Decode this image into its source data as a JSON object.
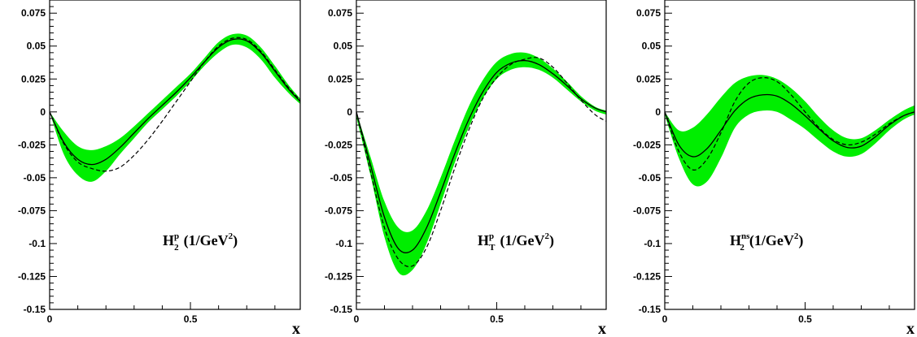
{
  "chart_data": [
    {
      "type": "line",
      "label": {
        "main": "H",
        "sup": "p",
        "sub": "2",
        "unit_pre": "(1/GeV",
        "unit_sup": "2",
        "unit_post": ")"
      },
      "xlabel": "x",
      "xlim": [
        0,
        0.89
      ],
      "ylim": [
        -0.15,
        0.085
      ],
      "x_ticks": [
        {
          "v": 0,
          "label": "0"
        },
        {
          "v": 0.5,
          "label": "0.5"
        }
      ],
      "y_ticks": [
        {
          "v": 0.075,
          "label": "0.075"
        },
        {
          "v": 0.05,
          "label": "0.05"
        },
        {
          "v": 0.025,
          "label": "0.025"
        },
        {
          "v": 0,
          "label": "0"
        },
        {
          "v": -0.025,
          "label": "-0.025"
        },
        {
          "v": -0.05,
          "label": "-0.05"
        },
        {
          "v": -0.075,
          "label": "-0.075"
        },
        {
          "v": -0.1,
          "label": "-0.1"
        },
        {
          "v": -0.125,
          "label": "-0.125"
        },
        {
          "v": -0.15,
          "label": "-0.15"
        }
      ],
      "band_color": "#00ee00",
      "x": [
        0,
        0.05,
        0.1,
        0.15,
        0.2,
        0.25,
        0.3,
        0.35,
        0.4,
        0.45,
        0.5,
        0.55,
        0.6,
        0.65,
        0.7,
        0.75,
        0.8,
        0.85,
        0.89
      ],
      "central": [
        0,
        -0.023,
        -0.036,
        -0.04,
        -0.036,
        -0.027,
        -0.016,
        -0.005,
        0.005,
        0.015,
        0.026,
        0.038,
        0.049,
        0.055,
        0.054,
        0.045,
        0.031,
        0.017,
        0.008
      ],
      "band_lower": [
        0,
        -0.032,
        -0.048,
        -0.053,
        -0.045,
        -0.032,
        -0.02,
        -0.008,
        0.002,
        0.012,
        0.023,
        0.035,
        0.045,
        0.051,
        0.049,
        0.04,
        0.026,
        0.014,
        0.006
      ],
      "band_upper": [
        0,
        -0.015,
        -0.026,
        -0.029,
        -0.026,
        -0.02,
        -0.011,
        -0.001,
        0.009,
        0.019,
        0.029,
        0.041,
        0.053,
        0.059,
        0.058,
        0.049,
        0.035,
        0.02,
        0.01
      ],
      "dashed": [
        0,
        -0.024,
        -0.038,
        -0.043,
        -0.045,
        -0.042,
        -0.033,
        -0.021,
        -0.007,
        0.008,
        0.023,
        0.038,
        0.05,
        0.056,
        0.055,
        0.046,
        0.032,
        0.018,
        0.009
      ]
    },
    {
      "type": "line",
      "label": {
        "main": "H",
        "sup": "p",
        "sub": "T",
        "unit_pre": "(1/GeV",
        "unit_sup": "2",
        "unit_post": ")"
      },
      "xlabel": "x",
      "xlim": [
        0,
        0.89
      ],
      "ylim": [
        -0.15,
        0.085
      ],
      "x_ticks": [
        {
          "v": 0,
          "label": "0"
        },
        {
          "v": 0.5,
          "label": "0.5"
        }
      ],
      "y_ticks": [
        {
          "v": 0.075,
          "label": "0.075"
        },
        {
          "v": 0.05,
          "label": "0.05"
        },
        {
          "v": 0.025,
          "label": "0.025"
        },
        {
          "v": 0,
          "label": "0"
        },
        {
          "v": -0.025,
          "label": "-0.025"
        },
        {
          "v": -0.05,
          "label": "-0.05"
        },
        {
          "v": -0.075,
          "label": "-0.075"
        },
        {
          "v": -0.1,
          "label": "-0.1"
        },
        {
          "v": -0.125,
          "label": "-0.125"
        },
        {
          "v": -0.15,
          "label": "-0.15"
        }
      ],
      "band_color": "#00ee00",
      "x": [
        0,
        0.05,
        0.1,
        0.15,
        0.2,
        0.25,
        0.3,
        0.35,
        0.4,
        0.45,
        0.5,
        0.55,
        0.6,
        0.65,
        0.7,
        0.75,
        0.8,
        0.85,
        0.89
      ],
      "central": [
        0,
        -0.04,
        -0.08,
        -0.104,
        -0.105,
        -0.088,
        -0.061,
        -0.032,
        -0.006,
        0.015,
        0.03,
        0.037,
        0.039,
        0.036,
        0.029,
        0.02,
        0.01,
        0.003,
        0
      ],
      "band_lower": [
        -0.004,
        -0.048,
        -0.095,
        -0.122,
        -0.12,
        -0.1,
        -0.07,
        -0.039,
        -0.012,
        0.01,
        0.025,
        0.032,
        0.034,
        0.032,
        0.026,
        0.017,
        0.008,
        0.001,
        -0.002
      ],
      "band_upper": [
        0,
        -0.034,
        -0.068,
        -0.088,
        -0.09,
        -0.075,
        -0.05,
        -0.022,
        0.004,
        0.024,
        0.038,
        0.044,
        0.045,
        0.041,
        0.033,
        0.023,
        0.012,
        0.004,
        0.001
      ],
      "dashed": [
        0,
        -0.045,
        -0.088,
        -0.112,
        -0.117,
        -0.103,
        -0.075,
        -0.043,
        -0.014,
        0.01,
        0.026,
        0.036,
        0.04,
        0.041,
        0.034,
        0.022,
        0.009,
        -0.002,
        -0.007
      ]
    },
    {
      "type": "line",
      "label": {
        "main": "H",
        "sup": "ns",
        "sub": "2",
        "unit_pre": "(1/GeV",
        "unit_sup": "2",
        "unit_post": ")"
      },
      "xlabel": "x",
      "xlim": [
        0,
        0.89
      ],
      "ylim": [
        -0.15,
        0.085
      ],
      "x_ticks": [
        {
          "v": 0,
          "label": "0"
        },
        {
          "v": 0.5,
          "label": "0.5"
        }
      ],
      "y_ticks": [
        {
          "v": 0.075,
          "label": "0.075"
        },
        {
          "v": 0.05,
          "label": "0.05"
        },
        {
          "v": 0.025,
          "label": "0.025"
        },
        {
          "v": 0,
          "label": "0"
        },
        {
          "v": -0.025,
          "label": "-0.025"
        },
        {
          "v": -0.05,
          "label": "-0.05"
        },
        {
          "v": -0.075,
          "label": "-0.075"
        },
        {
          "v": -0.1,
          "label": "-0.1"
        },
        {
          "v": -0.125,
          "label": "-0.125"
        },
        {
          "v": -0.15,
          "label": "-0.15"
        }
      ],
      "band_color": "#00ee00",
      "x": [
        0,
        0.05,
        0.1,
        0.15,
        0.2,
        0.25,
        0.3,
        0.35,
        0.4,
        0.45,
        0.5,
        0.55,
        0.6,
        0.65,
        0.7,
        0.75,
        0.8,
        0.85,
        0.89
      ],
      "central": [
        0,
        -0.025,
        -0.034,
        -0.028,
        -0.014,
        0.001,
        0.01,
        0.013,
        0.012,
        0.006,
        -0.003,
        -0.013,
        -0.022,
        -0.027,
        -0.026,
        -0.019,
        -0.01,
        -0.003,
        0
      ],
      "band_lower": [
        -0.002,
        -0.035,
        -0.055,
        -0.053,
        -0.035,
        -0.012,
        -0.002,
        0.001,
        0.0,
        -0.006,
        -0.013,
        -0.022,
        -0.03,
        -0.034,
        -0.032,
        -0.024,
        -0.014,
        -0.006,
        -0.002
      ],
      "band_upper": [
        0,
        -0.014,
        -0.012,
        -0.002,
        0.011,
        0.022,
        0.027,
        0.028,
        0.025,
        0.018,
        0.008,
        -0.004,
        -0.014,
        -0.02,
        -0.02,
        -0.014,
        -0.006,
        0.001,
        0.005
      ],
      "dashed": [
        0,
        -0.03,
        -0.044,
        -0.036,
        -0.016,
        0.008,
        0.022,
        0.026,
        0.023,
        0.013,
        0.0,
        -0.012,
        -0.021,
        -0.025,
        -0.023,
        -0.017,
        -0.009,
        -0.003,
        0
      ]
    }
  ]
}
